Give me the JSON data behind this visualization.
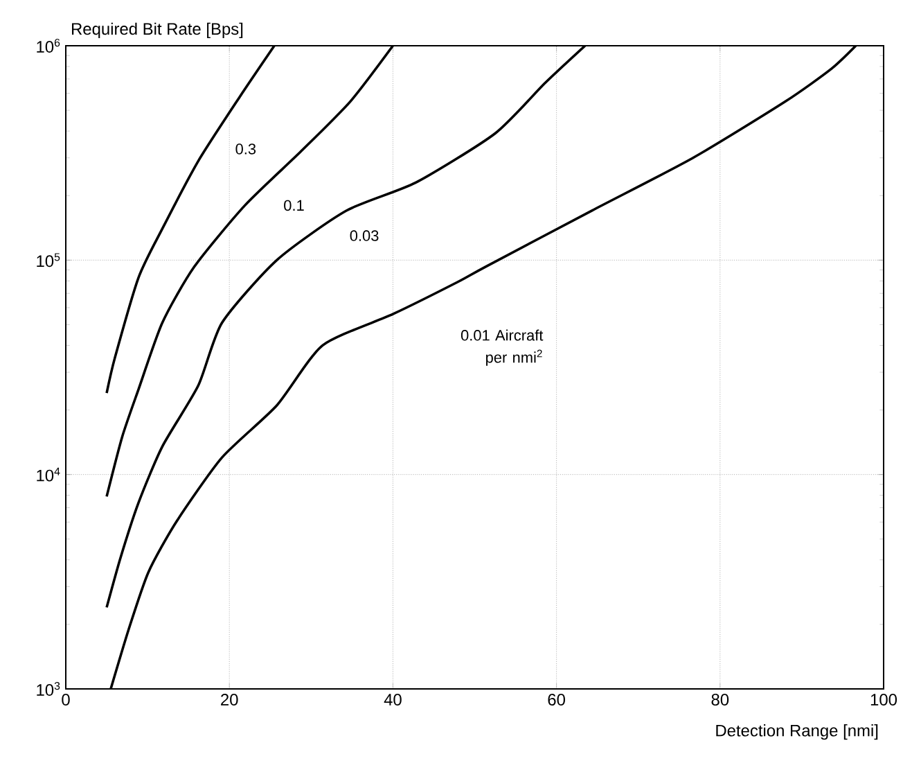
{
  "chart_data": {
    "type": "line",
    "xlabel": "Detection Range [nmi]",
    "ylabel": "Required Bit Rate [Bps]",
    "log": "y",
    "grid": true,
    "xlim": [
      0,
      100
    ],
    "ylim": [
      1000,
      1000000
    ],
    "xticks": [
      0,
      20,
      40,
      60,
      80,
      100
    ],
    "yticks": [
      {
        "value": 1000,
        "label": "10$^{3}$"
      },
      {
        "value": 10000,
        "label": "10$^{4}$"
      },
      {
        "value": 100000,
        "label": "10$^{5}$"
      },
      {
        "value": 1000000,
        "label": "10$^{6}$"
      }
    ],
    "series": [
      {
        "name": "0.3",
        "color": "#000000",
        "x": [
          5,
          6.0,
          8.9,
          11.8,
          16.2,
          21.3,
          25.5
        ],
        "values": [
          24000,
          35000,
          83000,
          140000,
          290000,
          580000,
          1000000
        ]
      },
      {
        "name": "0.1",
        "color": "#000000",
        "x": [
          5,
          6.9,
          8.9,
          11.8,
          15.7,
          21.9,
          28.7,
          34.8,
          40
        ],
        "values": [
          7900,
          15000,
          25000,
          51000,
          93000,
          180000,
          320000,
          550000,
          1000000
        ]
      },
      {
        "name": "0.03",
        "color": "#000000",
        "x": [
          5,
          6.7,
          8.9,
          11.8,
          16.2,
          19.1,
          25.8,
          34.3,
          42.8,
          52.5,
          58.6,
          63.5
        ],
        "values": [
          2400,
          4100,
          7400,
          13500,
          26000,
          51000,
          100000,
          170000,
          230000,
          390000,
          670000,
          1000000
        ]
      },
      {
        "name": "0.01 Aircraft per nmi$^{2}$",
        "color": "#000000",
        "x": [
          5.5,
          7.7,
          10.1,
          13.5,
          19.1,
          25.8,
          31.4,
          40,
          47.9,
          51.3,
          64.3,
          76.7,
          88.0,
          93.6,
          96.6
        ],
        "values": [
          1000,
          1900,
          3500,
          6000,
          12000,
          21000,
          40000,
          56000,
          79000,
          93000,
          170000,
          300000,
          550000,
          780000,
          1000000
        ]
      }
    ]
  }
}
